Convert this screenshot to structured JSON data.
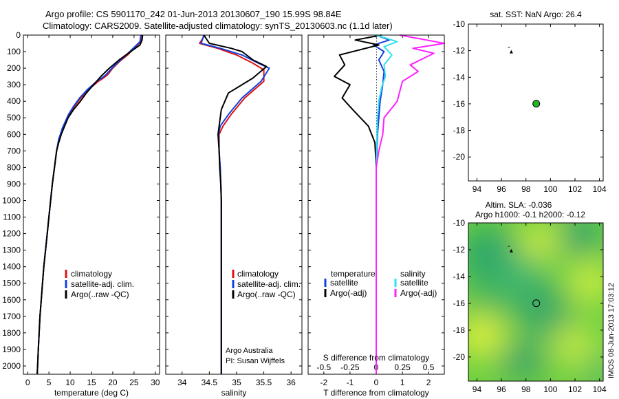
{
  "header": {
    "line1": "Argo profile: CS 5901170_242 01-Jun-2013 20130607_190 15.99S 98.84E",
    "line2": "Climatology: CARS2009. Satellite-adjusted climatology: synTS_20130603.nc (1.1d later)"
  },
  "side_label": "IMOS 08-Jun-2013 17:03:12",
  "colors": {
    "climatology": "#e01010",
    "satellite": "#1040e0",
    "argo": "#000000",
    "sal_satellite": "#30e0f0",
    "sal_argo": "#ff20ff",
    "marker_green": "#22bb22"
  },
  "chart_data": [
    {
      "id": "temperature",
      "type": "line",
      "xlabel": "temperature (deg C)",
      "xlim": [
        -1,
        31
      ],
      "xticks": [
        0,
        5,
        10,
        15,
        20,
        25,
        30
      ],
      "ylim": [
        0,
        2050
      ],
      "yticks": [
        0,
        100,
        200,
        300,
        400,
        500,
        600,
        700,
        800,
        900,
        1000,
        1100,
        1200,
        1300,
        1400,
        1500,
        1600,
        1700,
        1800,
        1900,
        2000
      ],
      "legend": [
        "climatology",
        "satellite-adj. clim.",
        "Argo(..raw -QC)"
      ],
      "series": [
        {
          "name": "climatology",
          "color": "#e01010",
          "x": [
            26.8,
            26.6,
            25.0,
            23.5,
            21.6,
            20.0,
            18.8,
            17.8,
            16.6,
            14.3,
            12.5,
            11.0,
            9.8,
            8.3,
            7.3,
            6.8,
            6.3,
            5.8,
            5.4,
            5.0,
            4.6,
            4.2,
            3.8,
            3.5,
            3.2,
            2.9,
            2.7,
            2.5,
            2.35,
            2.25
          ],
          "y": [
            0,
            40,
            80,
            120,
            160,
            200,
            240,
            260,
            280,
            330,
            380,
            430,
            480,
            560,
            630,
            700,
            800,
            900,
            1000,
            1100,
            1200,
            1300,
            1400,
            1500,
            1600,
            1700,
            1800,
            1900,
            2000,
            2050
          ]
        },
        {
          "name": "satellite",
          "color": "#1040e0",
          "x": [
            26.6,
            26.4,
            24.8,
            23.2,
            21.4,
            19.8,
            18.4,
            17.4,
            16.2,
            14.0,
            12.2,
            10.8,
            9.6,
            8.2,
            7.3,
            6.8,
            6.3,
            5.8,
            5.4,
            5.0,
            4.6,
            4.2,
            3.8,
            3.5,
            3.2,
            2.9,
            2.7,
            2.5,
            2.35,
            2.25
          ],
          "y": [
            0,
            40,
            80,
            120,
            160,
            200,
            240,
            260,
            280,
            330,
            380,
            430,
            480,
            560,
            630,
            700,
            800,
            900,
            1000,
            1100,
            1200,
            1300,
            1400,
            1500,
            1600,
            1700,
            1800,
            1900,
            2000,
            2050
          ]
        },
        {
          "name": "argo",
          "color": "#000000",
          "x": [
            27.0,
            26.9,
            26.4,
            24.2,
            21.5,
            19.2,
            17.2,
            15.5,
            13.8,
            12.4,
            10.8,
            9.5,
            8.7,
            7.9,
            7.3,
            6.8,
            6.3,
            5.8,
            5.4,
            5.0,
            4.6,
            4.2,
            3.8,
            3.5,
            3.2,
            2.9,
            2.7,
            2.5,
            2.35,
            2.25
          ],
          "y": [
            0,
            30,
            60,
            100,
            150,
            200,
            250,
            300,
            350,
            400,
            450,
            500,
            550,
            600,
            650,
            700,
            800,
            900,
            1000,
            1100,
            1200,
            1300,
            1400,
            1500,
            1600,
            1700,
            1800,
            1900,
            2000,
            2050
          ]
        }
      ]
    },
    {
      "id": "salinity",
      "type": "line",
      "xlabel": "salinity",
      "xlim": [
        33.7,
        36.2
      ],
      "xticks": [
        34,
        34.5,
        35,
        35.5,
        36
      ],
      "ylim": [
        0,
        2050
      ],
      "legend": [
        "climatology",
        "satellite-adj. clim.",
        "Argo(..raw -QC)"
      ],
      "annotation": [
        "Argo Australia",
        "PI: Susan Wijffels"
      ],
      "series": [
        {
          "name": "climatology",
          "color": "#e01010",
          "x": [
            34.42,
            34.32,
            34.65,
            35.0,
            35.3,
            35.5,
            35.5,
            35.15,
            34.9,
            34.75,
            34.68,
            34.68,
            34.7,
            34.71,
            34.72,
            34.72,
            34.72,
            34.72,
            34.72,
            34.72
          ],
          "y": [
            0,
            50,
            80,
            120,
            170,
            210,
            280,
            380,
            480,
            550,
            600,
            700,
            800,
            900,
            1000,
            1200,
            1400,
            1600,
            1800,
            2050
          ]
        },
        {
          "name": "satellite",
          "color": "#1040e0",
          "x": [
            34.4,
            34.35,
            34.7,
            35.1,
            35.4,
            35.6,
            35.45,
            35.1,
            34.85,
            34.7,
            34.67,
            34.68,
            34.7,
            34.71,
            34.72,
            34.72,
            34.72,
            34.72,
            34.72,
            34.72
          ],
          "y": [
            0,
            50,
            80,
            120,
            170,
            200,
            280,
            380,
            480,
            550,
            600,
            700,
            800,
            900,
            1000,
            1200,
            1400,
            1600,
            1800,
            2050
          ]
        },
        {
          "name": "argo",
          "color": "#000000",
          "x": [
            34.4,
            34.5,
            34.9,
            35.1,
            35.3,
            35.55,
            35.3,
            34.85,
            34.72,
            34.68,
            34.66,
            34.68,
            34.69,
            34.71,
            34.72,
            34.72,
            34.72,
            34.72,
            34.72,
            34.72
          ],
          "y": [
            0,
            50,
            80,
            100,
            150,
            190,
            260,
            350,
            450,
            550,
            600,
            700,
            800,
            900,
            1000,
            1200,
            1400,
            1600,
            1800,
            2050
          ]
        }
      ]
    },
    {
      "id": "difference",
      "type": "line",
      "xlabel": "T difference from climatology",
      "xlabel_top": "S difference from climatology",
      "xlim": [
        -2.6,
        2.6
      ],
      "xticks": [
        -2,
        -1,
        0,
        1,
        2
      ],
      "xticks_top": [
        "-0.5",
        "-0.25",
        "0",
        "0.25",
        "0.5"
      ],
      "ylim": [
        0,
        2050
      ],
      "legend_left_title": "temperature",
      "legend_right_title": "salinity",
      "legend_left": [
        "satellite",
        "Argo(-adj)"
      ],
      "legend_right": [
        "satellite",
        "Argo(-adj)"
      ],
      "series": [
        {
          "name": "T satellite",
          "color": "#1040e0",
          "x": [
            0.0,
            0.5,
            -0.1,
            0.3,
            0.1,
            0.3,
            0.25,
            0.15,
            0.1,
            0.05,
            0.0,
            0.0,
            0.0,
            0.0,
            0.0
          ],
          "y": [
            0,
            30,
            60,
            100,
            150,
            220,
            300,
            400,
            500,
            600,
            800,
            1000,
            1400,
            1800,
            2050
          ]
        },
        {
          "name": "T argo",
          "color": "#000000",
          "x": [
            0.2,
            -0.8,
            0.1,
            -1.4,
            -1.2,
            -1.6,
            -1.0,
            -1.3,
            -0.9,
            -0.3,
            -0.05,
            0.0,
            0.0,
            0.0,
            0.0
          ],
          "y": [
            0,
            30,
            60,
            120,
            180,
            250,
            300,
            380,
            450,
            550,
            650,
            800,
            1000,
            1400,
            2050
          ]
        },
        {
          "name": "S satellite",
          "color": "#30e0f0",
          "x": [
            0.0,
            0.8,
            0.3,
            0.6,
            0.3,
            0.35,
            0.2,
            0.1,
            0.05,
            0.02,
            0.0,
            0.0,
            0.0,
            0.0
          ],
          "y": [
            0,
            40,
            70,
            120,
            180,
            250,
            320,
            400,
            500,
            650,
            800,
            1000,
            1500,
            2050
          ]
        },
        {
          "name": "S argo",
          "color": "#ff20ff",
          "x": [
            0.9,
            2.6,
            1.4,
            2.2,
            1.3,
            1.6,
            1.0,
            0.8,
            0.3,
            0.25,
            0.1,
            0.0,
            0.0,
            0.0
          ],
          "y": [
            0,
            50,
            80,
            110,
            180,
            220,
            280,
            400,
            500,
            600,
            700,
            800,
            1200,
            2050
          ]
        }
      ]
    },
    {
      "id": "sat-sst-map",
      "type": "scatter",
      "title": "sat. SST: NaN Argo: 26.4",
      "xlim": [
        93.3,
        104.3
      ],
      "ylim": [
        -21.8,
        -10
      ],
      "xticks": [
        94,
        96,
        98,
        100,
        102,
        104
      ],
      "yticks": [
        -10,
        -12,
        -14,
        -16,
        -18,
        -20
      ],
      "points": [
        {
          "label": "float position",
          "x": 98.84,
          "y": -15.99
        },
        {
          "label": "track",
          "x": 96.8,
          "y": -12.1
        }
      ]
    },
    {
      "id": "altim-sla-map",
      "type": "heatmap",
      "title_line1": "Altim. SLA: -0.036",
      "title_line2": "Argo h1000: -0.1 h2000: -0.12",
      "xlim": [
        93.3,
        104.3
      ],
      "ylim": [
        -21.8,
        -10
      ],
      "xticks": [
        94,
        96,
        98,
        100,
        102,
        104
      ],
      "yticks": [
        -10,
        -12,
        -14,
        -16,
        -18,
        -20
      ],
      "points": [
        {
          "label": "float position",
          "x": 98.84,
          "y": -15.99
        },
        {
          "label": "track",
          "x": 96.8,
          "y": -12.1
        }
      ]
    }
  ]
}
